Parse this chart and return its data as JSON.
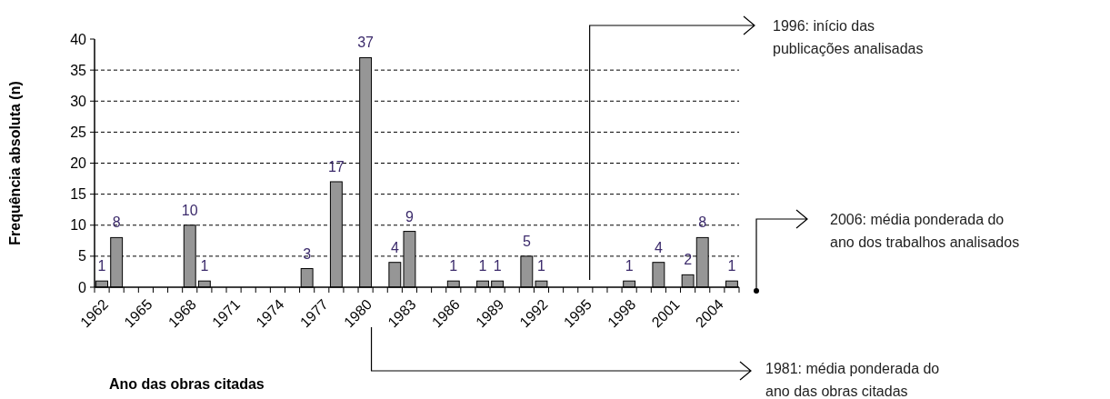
{
  "chart_data": {
    "type": "bar",
    "ylabel": "Frequência absoluta (n)",
    "xlabel": "Ano das obras citadas",
    "categories": [
      "1962",
      null,
      null,
      "1965",
      null,
      null,
      "1968",
      null,
      null,
      "1971",
      null,
      null,
      "1974",
      null,
      null,
      "1977",
      null,
      null,
      "1980",
      null,
      null,
      "1983",
      null,
      null,
      "1986",
      null,
      null,
      "1989",
      null,
      null,
      "1992",
      null,
      null,
      "1995",
      null,
      null,
      "1998",
      null,
      null,
      "2001",
      null,
      null,
      "2004",
      null
    ],
    "values": [
      1,
      8,
      null,
      null,
      null,
      null,
      10,
      1,
      null,
      null,
      null,
      null,
      null,
      null,
      3,
      null,
      17,
      null,
      37,
      null,
      4,
      9,
      null,
      null,
      1,
      null,
      1,
      1,
      null,
      5,
      1,
      null,
      null,
      null,
      null,
      null,
      1,
      null,
      4,
      null,
      2,
      8,
      null,
      1
    ],
    "color": "#969696",
    "ylim": [
      0,
      40
    ],
    "yticks": [
      0,
      5,
      10,
      15,
      20,
      25,
      30,
      35,
      40
    ],
    "grid": "y",
    "data_labels": true,
    "annotations": [
      "1996: início das publicações analisadas",
      "2006: média ponderada do ano dos trabalhos analisados",
      "1981: média ponderada do ano das obras citadas"
    ]
  }
}
